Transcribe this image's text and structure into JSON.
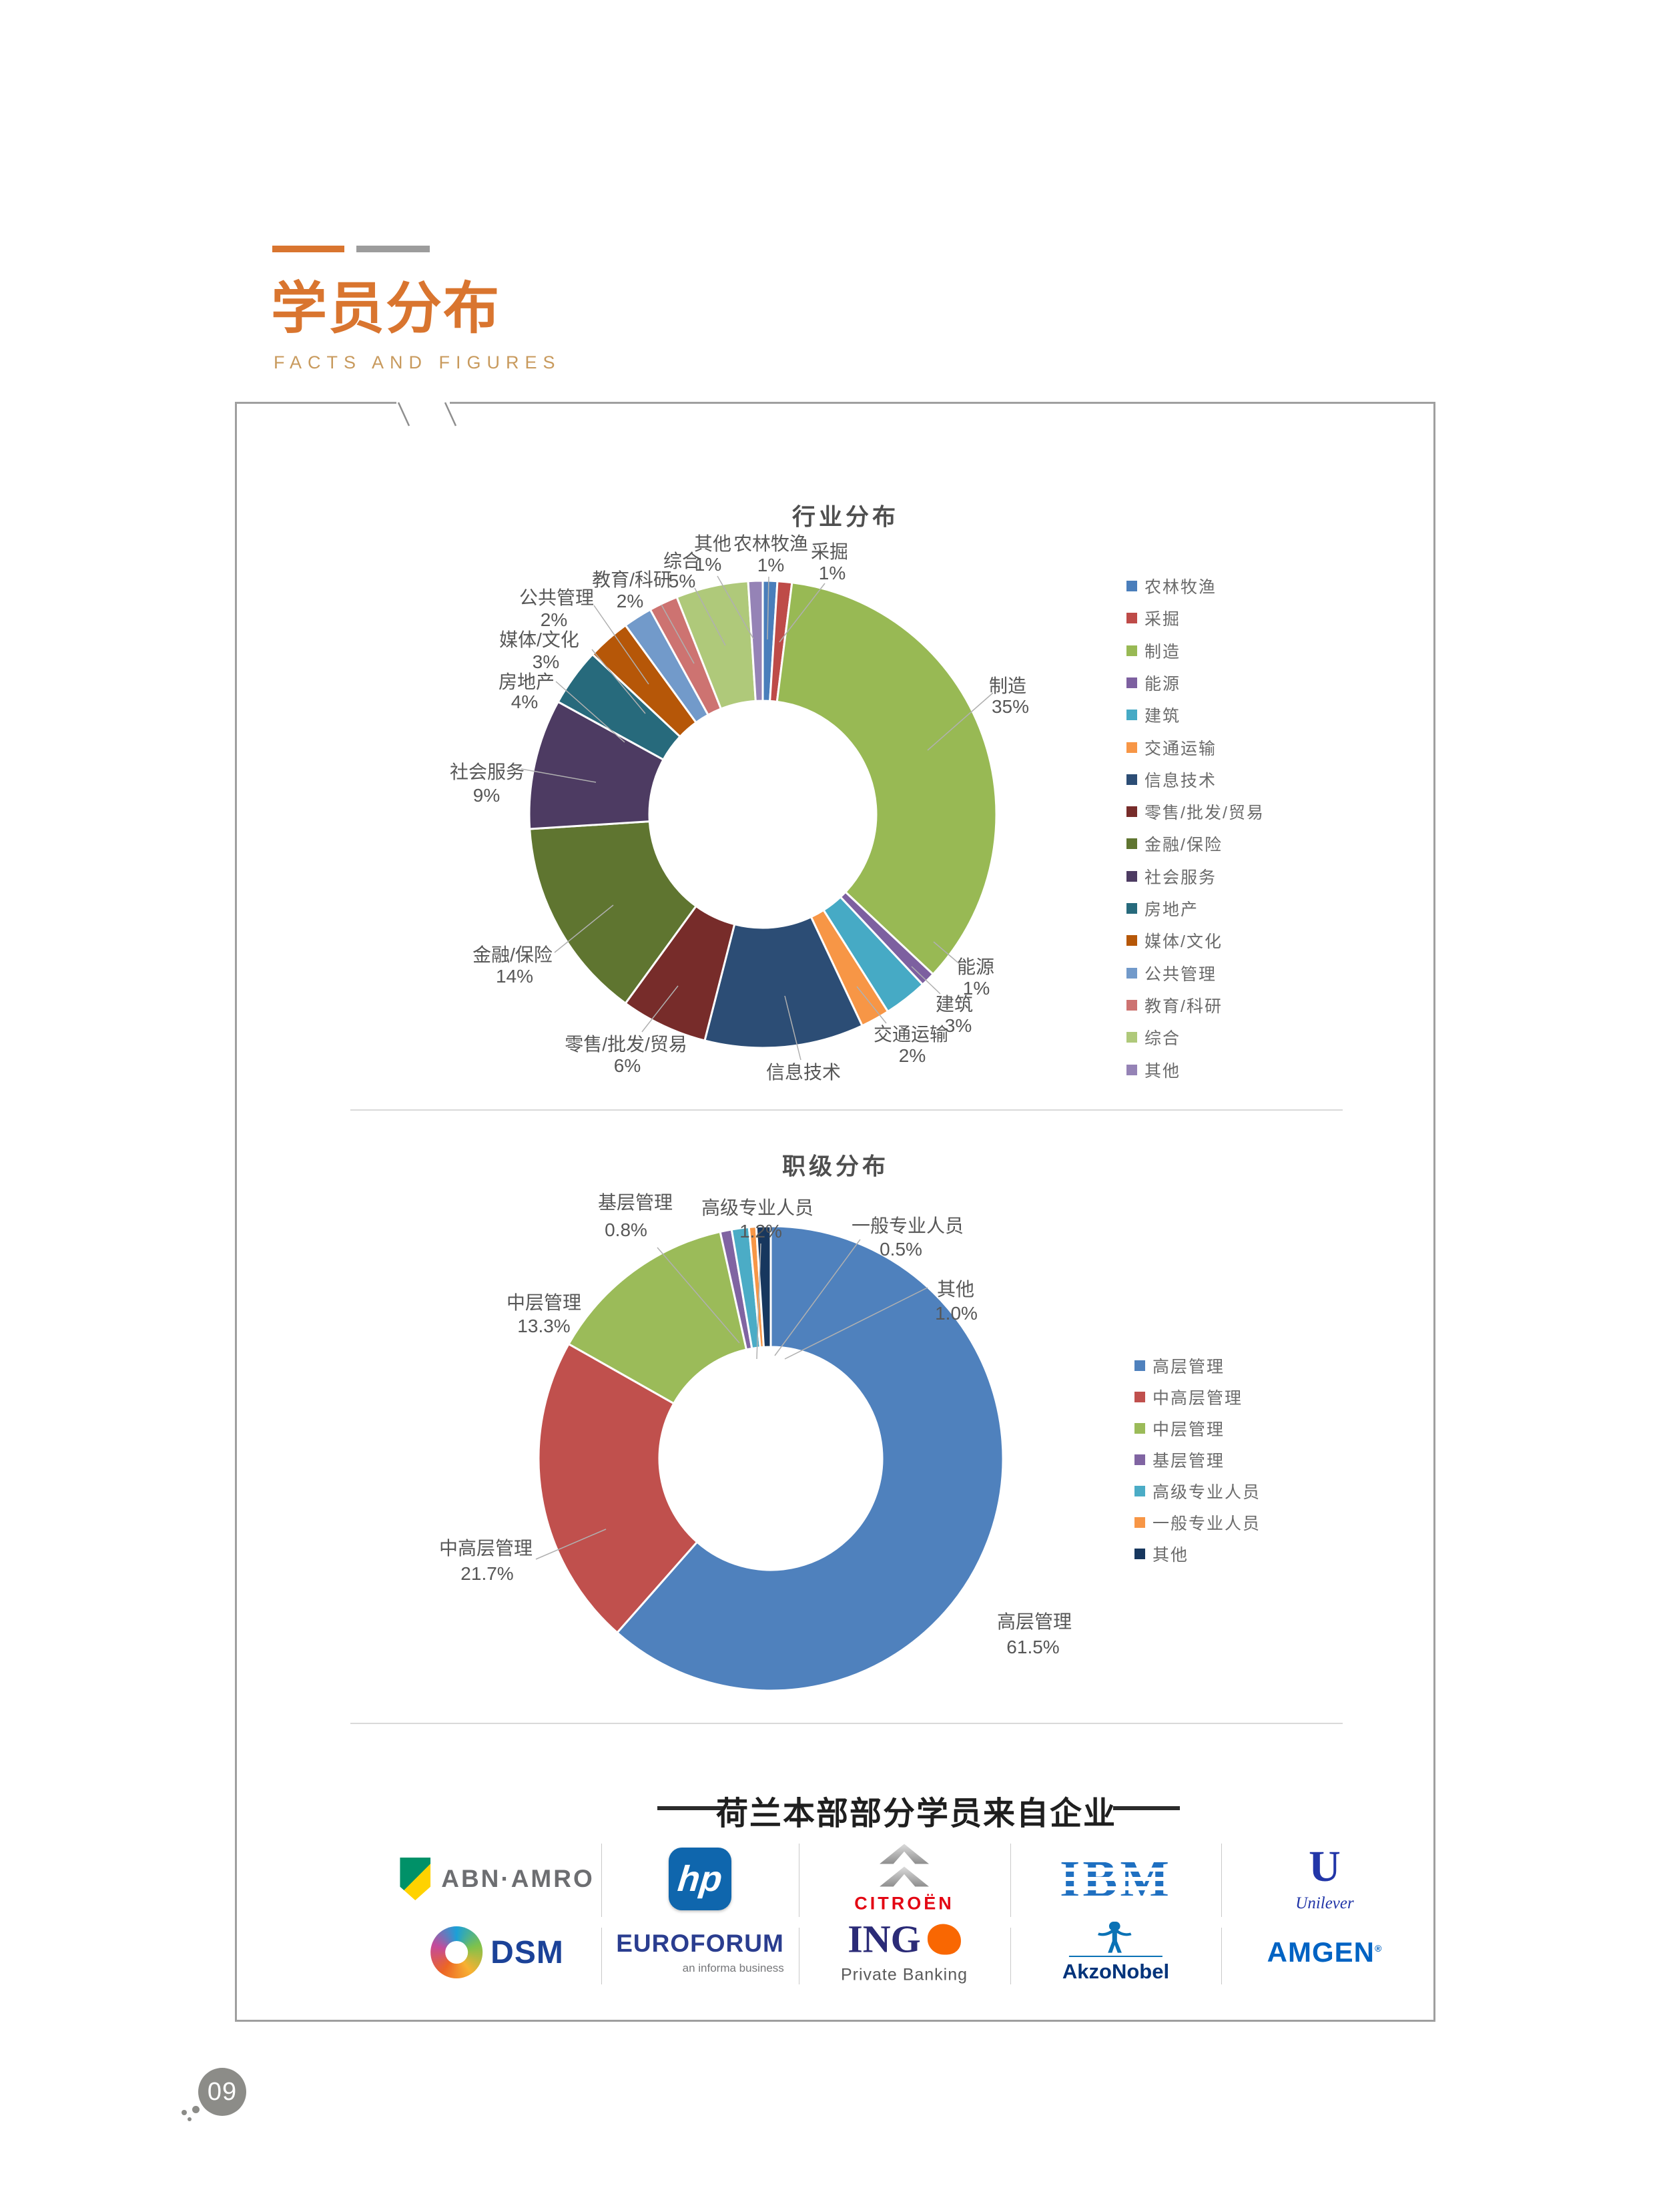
{
  "page_header": {
    "title": "学员分布",
    "subtitle": "FACTS AND FIGURES"
  },
  "page_number": "09",
  "accent_colors": {
    "title_orange": "#d9752f",
    "subtitle_gold": "#c89a5d"
  },
  "chart_data": [
    {
      "type": "pie",
      "donut": true,
      "title": "行业分布",
      "legend_position": "right",
      "slices": [
        {
          "label": "农林牧渔",
          "value": 1,
          "pct": "1%",
          "color": "#4a7ebb"
        },
        {
          "label": "采掘",
          "value": 1,
          "pct": "1%",
          "color": "#be4b48"
        },
        {
          "label": "制造",
          "value": 35,
          "pct": "35%",
          "color": "#98b954"
        },
        {
          "label": "能源",
          "value": 1,
          "pct": "1%",
          "color": "#7d60a0"
        },
        {
          "label": "建筑",
          "value": 3,
          "pct": "3%",
          "color": "#46aac5"
        },
        {
          "label": "交通运输",
          "value": 2,
          "pct": "2%",
          "color": "#f79646"
        },
        {
          "label": "信息技术",
          "value": 11,
          "pct": "",
          "color": "#2c4d75"
        },
        {
          "label": "零售/批发/贸易",
          "value": 6,
          "pct": "6%",
          "color": "#772c2a"
        },
        {
          "label": "金融/保险",
          "value": 14,
          "pct": "14%",
          "color": "#5f7530"
        },
        {
          "label": "社会服务",
          "value": 9,
          "pct": "9%",
          "color": "#4d3b62"
        },
        {
          "label": "房地产",
          "value": 4,
          "pct": "4%",
          "color": "#276a7c"
        },
        {
          "label": "媒体/文化",
          "value": 3,
          "pct": "3%",
          "color": "#b65708"
        },
        {
          "label": "公共管理",
          "value": 2,
          "pct": "2%",
          "color": "#729aca"
        },
        {
          "label": "教育/科研",
          "value": 2,
          "pct": "2%",
          "color": "#cd7371"
        },
        {
          "label": "综合",
          "value": 5,
          "pct": "5%",
          "color": "#afc97a"
        },
        {
          "label": "其他",
          "value": 1,
          "pct": "1%",
          "color": "#9583b6"
        }
      ]
    },
    {
      "type": "pie",
      "donut": true,
      "title": "职级分布",
      "legend_position": "right",
      "slices": [
        {
          "label": "高层管理",
          "value": 61.5,
          "pct": "61.5%",
          "color": "#4f81bd"
        },
        {
          "label": "中高层管理",
          "value": 21.7,
          "pct": "21.7%",
          "color": "#c0504d"
        },
        {
          "label": "中层管理",
          "value": 13.3,
          "pct": "13.3%",
          "color": "#9bbb59"
        },
        {
          "label": "基层管理",
          "value": 0.8,
          "pct": "0.8%",
          "color": "#8064a2"
        },
        {
          "label": "高级专业人员",
          "value": 1.2,
          "pct": "1.2%",
          "color": "#4bacc6"
        },
        {
          "label": "一般专业人员",
          "value": 0.5,
          "pct": "0.5%",
          "color": "#f79646"
        },
        {
          "label": "其他",
          "value": 1.0,
          "pct": "1.0%",
          "color": "#17375e"
        }
      ]
    }
  ],
  "companies": {
    "heading": "荷兰本部部分学员来自企业",
    "abn_amro": "ABN·AMRO",
    "hp": "hp",
    "citroen": "CITROËN",
    "ibm": "IBM",
    "unilever_initial": "U",
    "unilever": "Unilever",
    "dsm": "DSM",
    "euroforum": "EUROFORUM",
    "euroforum_sub": "an informa business",
    "ing": "ING",
    "ing_sub": "Private Banking",
    "akzonobel": "AkzoNobel",
    "amgen": "AMGEN"
  }
}
